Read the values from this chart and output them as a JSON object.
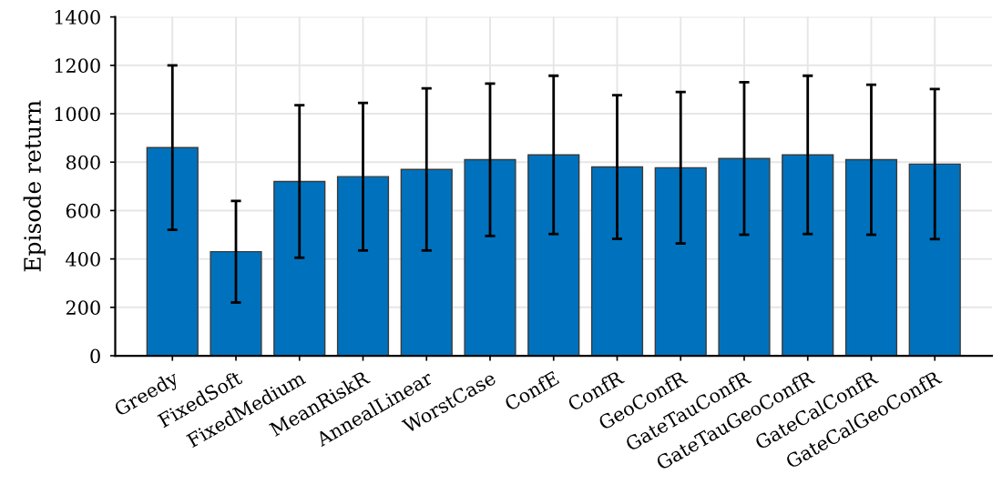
{
  "chart_data": {
    "type": "bar",
    "ylabel": "Episode return",
    "categories": [
      "Greedy",
      "FixedSoft",
      "FixedMedium",
      "MeanRiskR",
      "AnnealLinear",
      "WorstCase",
      "ConfE",
      "ConfR",
      "GeoConfR",
      "GateTauConfR",
      "GateTauGeoConfR",
      "GateCalConfR",
      "GateCalGeoConfR"
    ],
    "values": [
      860,
      430,
      720,
      740,
      770,
      810,
      830,
      780,
      777,
      815,
      830,
      810,
      792
    ],
    "errors": [
      340,
      210,
      315,
      305,
      335,
      315,
      327,
      297,
      313,
      315,
      327,
      310,
      310
    ],
    "color": "#0072bd",
    "ylim": [
      0,
      1400
    ],
    "yticks": [
      0,
      200,
      400,
      600,
      800,
      1000,
      1200,
      1400
    ],
    "grid": true
  }
}
